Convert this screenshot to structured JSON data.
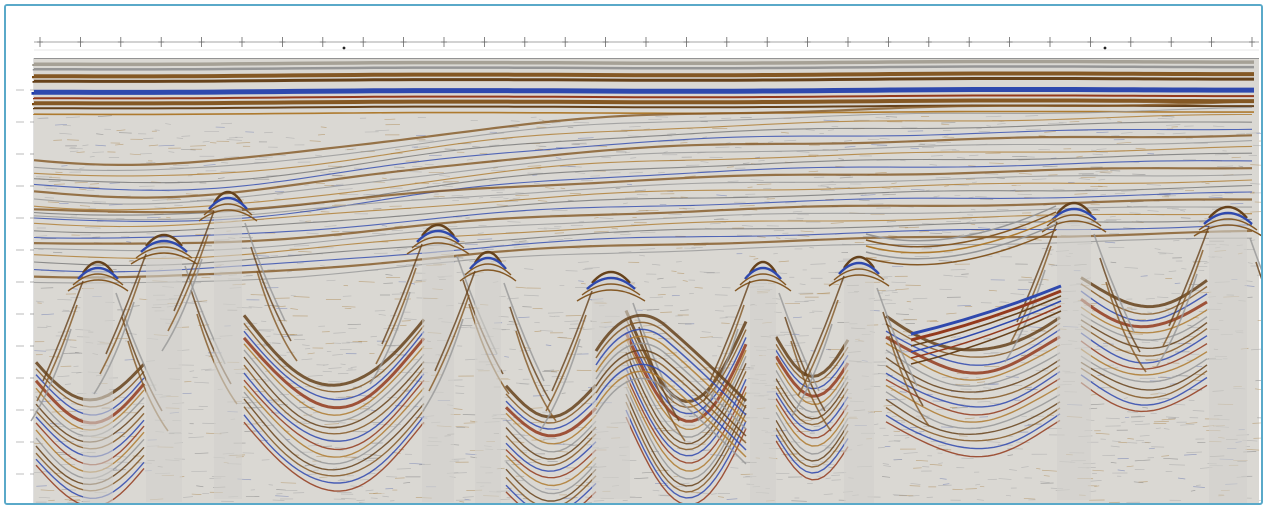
{
  "figure": {
    "frame_color": "#5aa9c9",
    "background": "#d7d5d0",
    "colors": {
      "brown": "#7a4a12",
      "dark_brown": "#5a3208",
      "red_brown": "#8b2a0a",
      "blue": "#1e3aa8",
      "gray": "#8e8e8e",
      "gold": "#a8701e"
    }
  }
}
